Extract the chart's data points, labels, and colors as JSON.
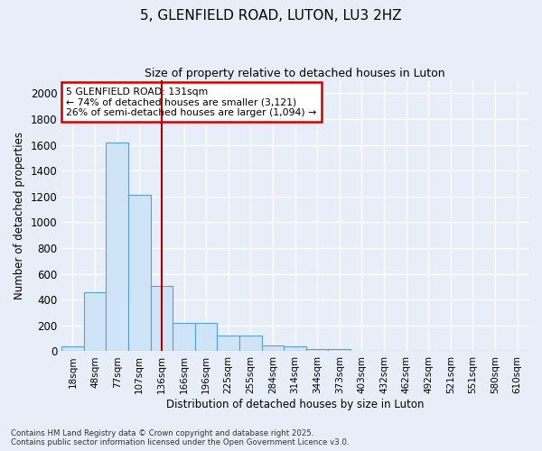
{
  "title": "5, GLENFIELD ROAD, LUTON, LU3 2HZ",
  "subtitle": "Size of property relative to detached houses in Luton",
  "xlabel": "Distribution of detached houses by size in Luton",
  "ylabel": "Number of detached properties",
  "categories": [
    "18sqm",
    "48sqm",
    "77sqm",
    "107sqm",
    "136sqm",
    "166sqm",
    "196sqm",
    "225sqm",
    "255sqm",
    "284sqm",
    "314sqm",
    "344sqm",
    "373sqm",
    "403sqm",
    "432sqm",
    "462sqm",
    "492sqm",
    "521sqm",
    "551sqm",
    "580sqm",
    "610sqm"
  ],
  "values": [
    35,
    460,
    1620,
    1210,
    510,
    220,
    220,
    125,
    125,
    45,
    40,
    20,
    18,
    5,
    0,
    0,
    0,
    0,
    0,
    0,
    0
  ],
  "bar_color": "#d0e4f7",
  "bar_edge_color": "#5a9fd4",
  "vline_x": 4.0,
  "vline_color": "#aa0000",
  "annotation_text": "5 GLENFIELD ROAD: 131sqm\n← 74% of detached houses are smaller (3,121)\n26% of semi-detached houses are larger (1,094) →",
  "annotation_box_color": "#ffffff",
  "annotation_box_edge_color": "#cc0000",
  "ylim": [
    0,
    2100
  ],
  "yticks": [
    0,
    200,
    400,
    600,
    800,
    1000,
    1200,
    1400,
    1600,
    1800,
    2000
  ],
  "background_color": "#e8eef8",
  "plot_bg_color": "#e8eef8",
  "grid_color": "#ffffff",
  "footer_line1": "Contains HM Land Registry data © Crown copyright and database right 2025.",
  "footer_line2": "Contains public sector information licensed under the Open Government Licence v3.0."
}
